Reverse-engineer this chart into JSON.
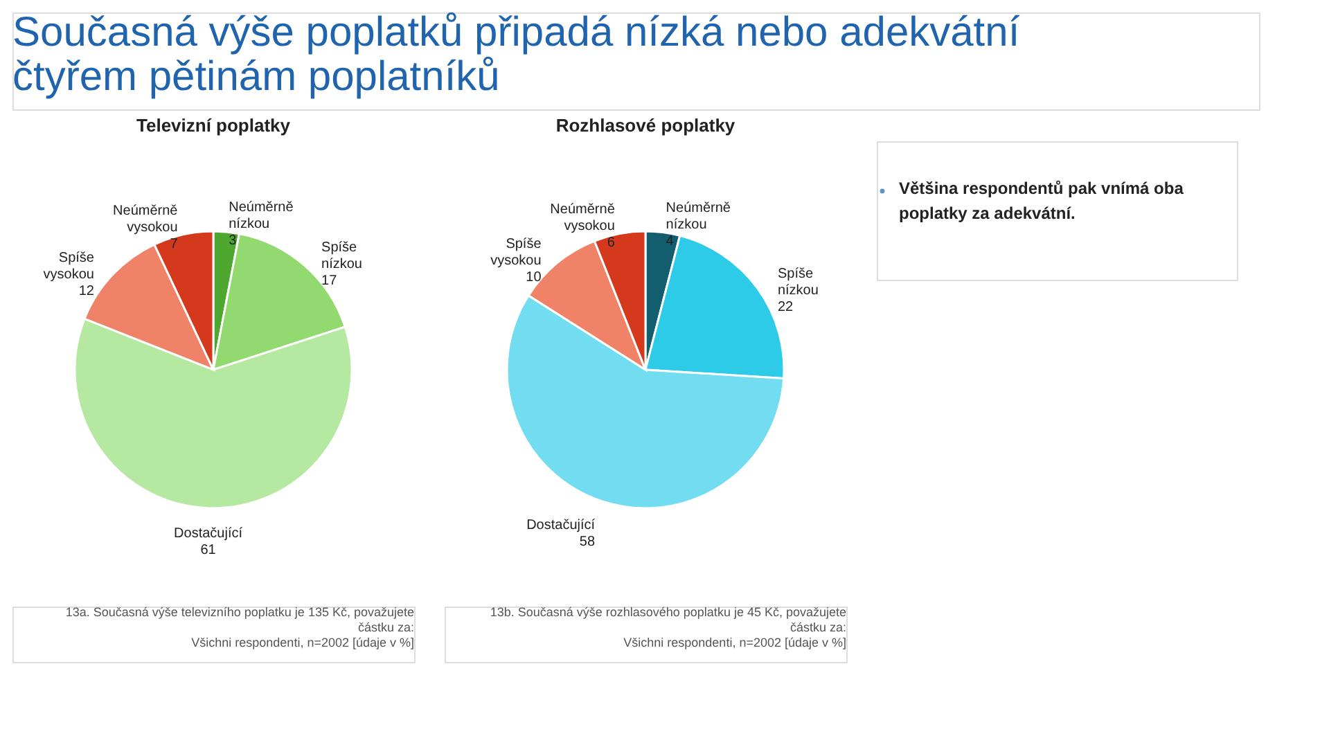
{
  "chart_data": [
    {
      "type": "other",
      "title": "Současná výše poplatků připadá nízká nebo adekvátní čtyřem pětinám poplatníků"
    },
    {
      "type": "pie",
      "title": "Televizní poplatky",
      "categories": [
        "Neúměrně nízkou",
        "Spíše nízkou",
        "Dostačující",
        "Spíše vysokou",
        "Neúměrně vysokou"
      ],
      "values": [
        3,
        17,
        61,
        12,
        7
      ],
      "colors": [
        "#4ea72e",
        "#92d970",
        "#b5e8a0",
        "#f08268",
        "#d5391b"
      ],
      "data_labels": true,
      "annotations": [
        "13a. Současná výše televizního poplatku je 135 Kč, považujete částku za:",
        "Všichni respondenti, n=2002 [údaje v %]"
      ]
    },
    {
      "type": "pie",
      "title": "Rozhlasové poplatky",
      "categories": [
        "Neúměrně nízkou",
        "Spíše nízkou",
        "Dostačující",
        "Spíše vysokou",
        "Neúměrně vysokou"
      ],
      "values": [
        4,
        22,
        58,
        10,
        6
      ],
      "colors": [
        "#135e6e",
        "#2ecbe8",
        "#72dcf0",
        "#f08268",
        "#d5391b"
      ],
      "data_labels": true,
      "annotations": [
        "13b. Současná výše rozhlasového poplatku je 45 Kč, považujete částku za:",
        "Všichni respondenti, n=2002 [údaje v %]"
      ]
    },
    {
      "type": "other",
      "annotations": [
        "Většina respondentů pak vnímá oba poplatky za adekvátní."
      ]
    }
  ]
}
